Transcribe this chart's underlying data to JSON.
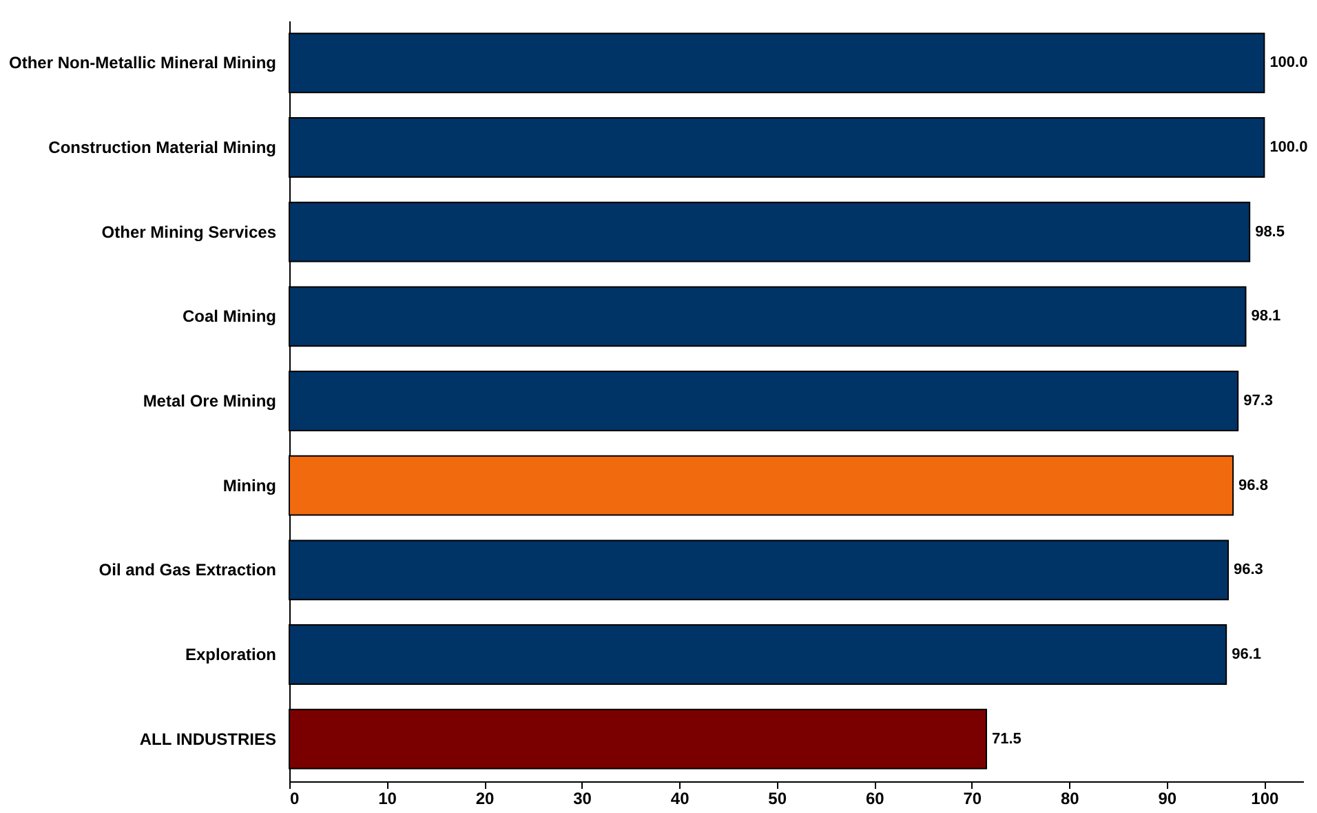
{
  "chart_data": {
    "type": "bar",
    "orientation": "horizontal",
    "categories": [
      "Other Non-Metallic Mineral Mining",
      "Construction Material Mining",
      "Other Mining Services",
      "Coal Mining",
      "Metal Ore Mining",
      "Mining",
      "Oil and Gas Extraction",
      "Exploration",
      "ALL INDUSTRIES"
    ],
    "values": [
      100.0,
      100.0,
      98.5,
      98.1,
      97.3,
      96.8,
      96.3,
      96.1,
      71.5
    ],
    "colors": [
      "#003366",
      "#003366",
      "#003366",
      "#003366",
      "#003366",
      "#f26a0e",
      "#003366",
      "#003366",
      "#7a0000"
    ],
    "value_labels": [
      "100.0",
      "100.0",
      "98.5",
      "98.1",
      "97.3",
      "96.8",
      "96.3",
      "96.1",
      "71.5"
    ],
    "xlim": [
      0,
      104
    ],
    "xticks": [
      0,
      10,
      20,
      30,
      40,
      50,
      60,
      70,
      80,
      90,
      100
    ],
    "grid": false
  }
}
